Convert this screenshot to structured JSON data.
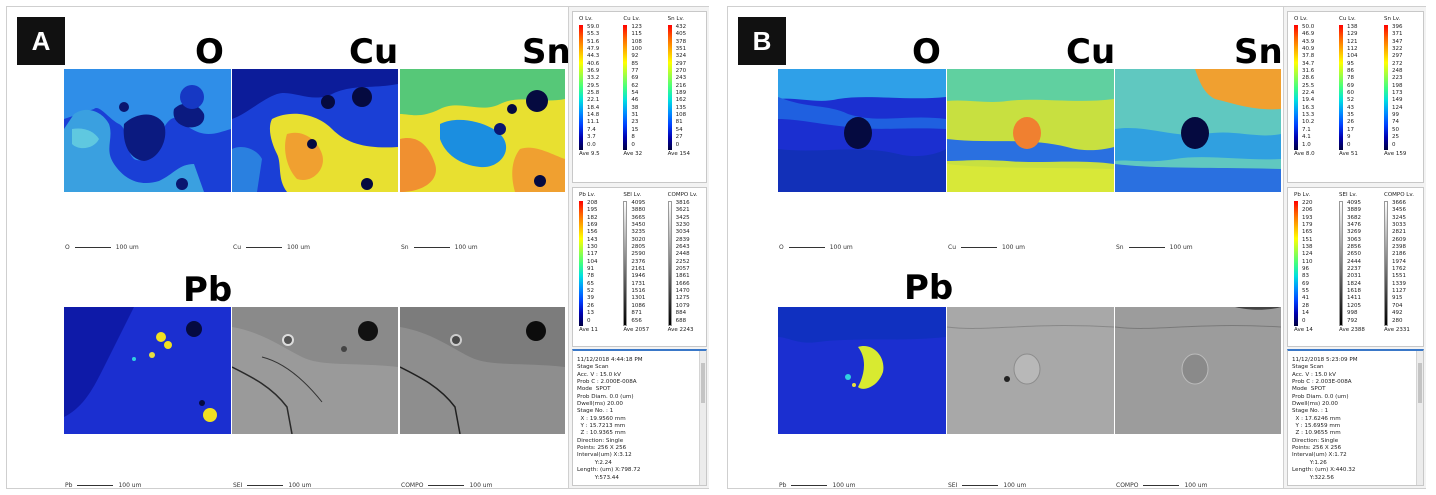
{
  "panels": [
    {
      "letter": "A",
      "maps": [
        {
          "title": "O",
          "scale": "O",
          "scale_text": "100 um"
        },
        {
          "title": "Cu",
          "scale": "Cu",
          "scale_text": "100 um"
        },
        {
          "title": "Sn",
          "scale": "Sn",
          "scale_text": "100 um"
        },
        {
          "title": "Pb",
          "scale": "Pb",
          "scale_text": "100 um"
        },
        {
          "title": "",
          "scale": "SEI",
          "scale_text": "100 um"
        },
        {
          "title": "",
          "scale": "COMPO",
          "scale_text": "100 um"
        }
      ],
      "legend_top": [
        {
          "head": "O  Lv.",
          "values": [
            "59.0",
            "55.3",
            "51.6",
            "47.9",
            "44.3",
            "40.6",
            "36.9",
            "33.2",
            "29.5",
            "25.8",
            "22.1",
            "18.4",
            "14.8",
            "11.1",
            "7.4",
            "3.7",
            "0.0"
          ],
          "ave": "Ave 9.5",
          "scale": "jet"
        },
        {
          "head": "Cu  Lv.",
          "values": [
            "123",
            "115",
            "108",
            "100",
            "92",
            "85",
            "77",
            "69",
            "62",
            "54",
            "46",
            "38",
            "31",
            "23",
            "15",
            "8",
            "0"
          ],
          "ave": "Ave 32",
          "scale": "jet"
        },
        {
          "head": "Sn  Lv.",
          "values": [
            "432",
            "405",
            "378",
            "351",
            "324",
            "297",
            "270",
            "243",
            "216",
            "189",
            "162",
            "135",
            "108",
            "81",
            "54",
            "27",
            "0"
          ],
          "ave": "Ave 154",
          "scale": "jet"
        }
      ],
      "legend_bottom": [
        {
          "head": "Pb  Lv.",
          "values": [
            "208",
            "195",
            "182",
            "169",
            "156",
            "143",
            "130",
            "117",
            "104",
            "91",
            "78",
            "65",
            "52",
            "39",
            "26",
            "13",
            "0"
          ],
          "ave": "Ave 11",
          "scale": "jet"
        },
        {
          "head": "SEI  Lv.",
          "values": [
            "4095",
            "3880",
            "3665",
            "3450",
            "3235",
            "3020",
            "2805",
            "2590",
            "2376",
            "2161",
            "1946",
            "1731",
            "1516",
            "1301",
            "1086",
            "871",
            "656"
          ],
          "ave": "Ave 2057",
          "scale": "gray"
        },
        {
          "head": "COMPO  Lv.",
          "values": [
            "3816",
            "3621",
            "3425",
            "3230",
            "3034",
            "2839",
            "2643",
            "2448",
            "2252",
            "2057",
            "1861",
            "1666",
            "1470",
            "1275",
            "1079",
            "884",
            "688"
          ],
          "ave": "Ave 2243",
          "scale": "gray"
        }
      ],
      "info": [
        "11/12/2018 4:44:18 PM",
        "Stage Scan",
        "Acc. V : 15.0 kV",
        "Prob C : 2.000E-008A",
        "Mode  SPOT",
        "Prob Diam. 0.0 (um)",
        "Dwell(ms) 20.00",
        "Stage No. : 1",
        "  X : 19.9560 mm",
        "  Y : 15.7213 mm",
        "  Z : 10.9365 mm",
        "Direction: Single",
        "Points: 256 X 256",
        "Interval(um) X:3.12",
        "          Y:2.24",
        "Length: (um) X:798.72",
        "          Y:573.44"
      ]
    },
    {
      "letter": "B",
      "maps": [
        {
          "title": "O",
          "scale": "O",
          "scale_text": "100 um"
        },
        {
          "title": "Cu",
          "scale": "Cu",
          "scale_text": "100 um"
        },
        {
          "title": "Sn",
          "scale": "Sn",
          "scale_text": "100 um"
        },
        {
          "title": "Pb",
          "scale": "Pb",
          "scale_text": "100 um"
        },
        {
          "title": "",
          "scale": "SEI",
          "scale_text": "100 um"
        },
        {
          "title": "",
          "scale": "COMPO",
          "scale_text": "100 um"
        }
      ],
      "legend_top": [
        {
          "head": "O  Lv.",
          "values": [
            "50.0",
            "46.9",
            "43.9",
            "40.9",
            "37.8",
            "34.7",
            "31.6",
            "28.6",
            "25.5",
            "22.4",
            "19.4",
            "16.3",
            "13.3",
            "10.2",
            "7.1",
            "4.1",
            "1.0"
          ],
          "ave": "Ave 8.0",
          "scale": "jet"
        },
        {
          "head": "Cu  Lv.",
          "values": [
            "138",
            "129",
            "121",
            "112",
            "104",
            "95",
            "86",
            "78",
            "69",
            "60",
            "52",
            "43",
            "35",
            "26",
            "17",
            "9",
            "0"
          ],
          "ave": "Ave 51",
          "scale": "jet"
        },
        {
          "head": "Sn  Lv.",
          "values": [
            "396",
            "371",
            "347",
            "322",
            "297",
            "272",
            "248",
            "223",
            "198",
            "173",
            "149",
            "124",
            "99",
            "74",
            "50",
            "25",
            "0"
          ],
          "ave": "Ave 159",
          "scale": "jet"
        }
      ],
      "legend_bottom": [
        {
          "head": "Pb  Lv.",
          "values": [
            "220",
            "206",
            "193",
            "179",
            "165",
            "151",
            "138",
            "124",
            "110",
            "96",
            "83",
            "69",
            "55",
            "41",
            "28",
            "14",
            "0"
          ],
          "ave": "Ave 14",
          "scale": "jet"
        },
        {
          "head": "SEI  Lv.",
          "values": [
            "4095",
            "3889",
            "3682",
            "3476",
            "3269",
            "3063",
            "2856",
            "2650",
            "2444",
            "2237",
            "2031",
            "1824",
            "1618",
            "1411",
            "1205",
            "998",
            "792"
          ],
          "ave": "Ave 2388",
          "scale": "gray"
        },
        {
          "head": "COMPO  Lv.",
          "values": [
            "3666",
            "3456",
            "3245",
            "3033",
            "2821",
            "2609",
            "2398",
            "2186",
            "1974",
            "1762",
            "1551",
            "1339",
            "1127",
            "915",
            "704",
            "492",
            "280"
          ],
          "ave": "Ave 2331",
          "scale": "gray"
        }
      ],
      "info": [
        "11/12/2018 5:23:09 PM",
        "Stage Scan",
        "Acc. V : 15.0 kV",
        "Prob C : 2.003E-008A",
        "Mode  SPOT",
        "Prob Diam. 0.0 (um)",
        "Dwell(ms) 20.00",
        "Stage No. : 1",
        "  X : 17.6246 mm",
        "  Y : 15.6959 mm",
        "  Z : 10.9655 mm",
        "Direction: Single",
        "Points: 256 X 256",
        "Interval(um) X:1.72",
        "          Y:1.26",
        "Length: (um) X:440.32",
        "          Y:322.56"
      ]
    }
  ]
}
